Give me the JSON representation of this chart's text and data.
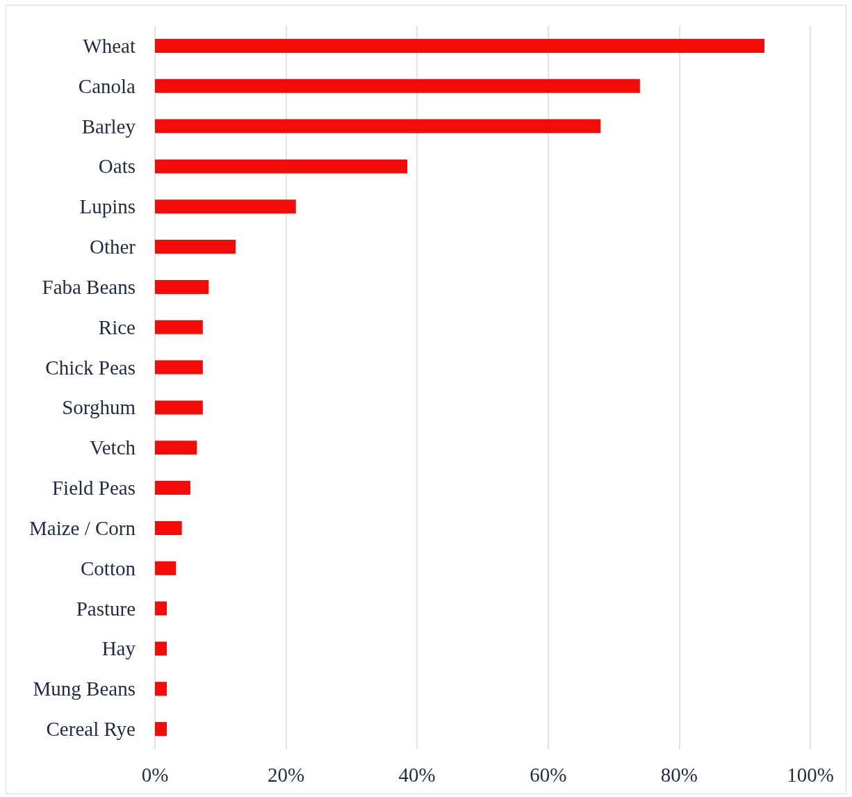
{
  "chart_data": {
    "type": "bar",
    "orientation": "horizontal",
    "categories": [
      "Wheat",
      "Canola",
      "Barley",
      "Oats",
      "Lupins",
      "Other",
      "Faba Beans",
      "Rice",
      "Chick Peas",
      "Sorghum",
      "Vetch",
      "Field Peas",
      "Maize / Corn",
      "Cotton",
      "Pasture",
      "Hay",
      "Mung Beans",
      "Cereal Rye"
    ],
    "values": [
      93,
      74,
      68,
      38.5,
      21.5,
      12.3,
      8.2,
      7.3,
      7.3,
      7.3,
      6.4,
      5.4,
      4.1,
      3.2,
      1.8,
      1.8,
      1.8,
      1.8
    ],
    "color": "#f40a06",
    "xlim": [
      0,
      100
    ],
    "xticks": [
      {
        "value": 0,
        "label": "0%"
      },
      {
        "value": 20,
        "label": "20%"
      },
      {
        "value": 40,
        "label": "40%"
      },
      {
        "value": 60,
        "label": "60%"
      },
      {
        "value": 80,
        "label": "80%"
      },
      {
        "value": 100,
        "label": "100%"
      }
    ],
    "grid": "x"
  }
}
